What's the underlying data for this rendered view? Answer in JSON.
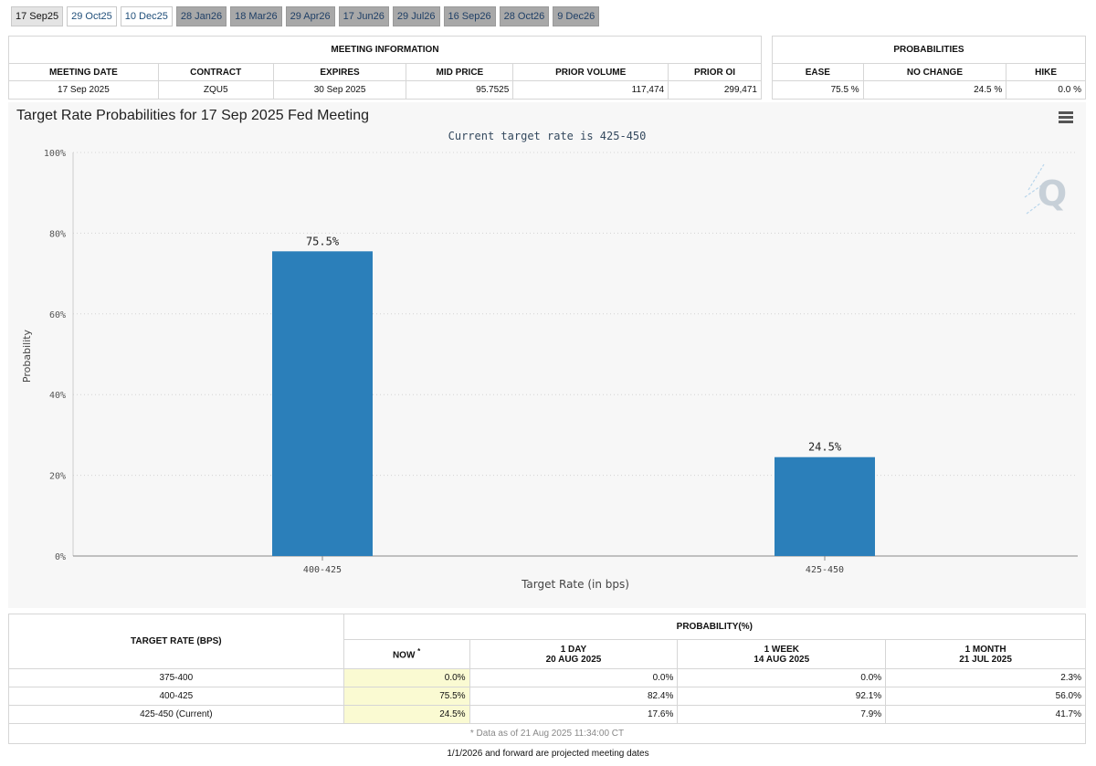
{
  "tabs": [
    {
      "label": "17 Sep25",
      "style": "active"
    },
    {
      "label": "29 Oct25",
      "style": "near"
    },
    {
      "label": "10 Dec25",
      "style": "near"
    },
    {
      "label": "28 Jan26",
      "style": "far"
    },
    {
      "label": "18 Mar26",
      "style": "far"
    },
    {
      "label": "29 Apr26",
      "style": "far"
    },
    {
      "label": "17 Jun26",
      "style": "far"
    },
    {
      "label": "29 Jul26",
      "style": "far"
    },
    {
      "label": "16 Sep26",
      "style": "far"
    },
    {
      "label": "28 Oct26",
      "style": "far"
    },
    {
      "label": "9 Dec26",
      "style": "far"
    }
  ],
  "meeting_info": {
    "title": "MEETING INFORMATION",
    "columns": [
      "MEETING DATE",
      "CONTRACT",
      "EXPIRES",
      "MID PRICE",
      "PRIOR VOLUME",
      "PRIOR OI"
    ],
    "values": [
      "17 Sep 2025",
      "ZQU5",
      "30 Sep 2025",
      "95.7525",
      "117,474",
      "299,471"
    ]
  },
  "probabilities": {
    "title": "PROBABILITIES",
    "columns": [
      "EASE",
      "NO CHANGE",
      "HIKE"
    ],
    "values": [
      "75.5 %",
      "24.5 %",
      "0.0 %"
    ]
  },
  "chart": {
    "title": "Target Rate Probabilities for 17 Sep 2025 Fed Meeting",
    "subtitle": "Current target rate is 425-450",
    "watermark": "Q"
  },
  "chart_data": {
    "type": "bar",
    "title": "Target Rate Probabilities for 17 Sep 2025 Fed Meeting",
    "subtitle": "Current target rate is 425-450",
    "categories": [
      "400-425",
      "425-450"
    ],
    "values": [
      75.5,
      24.5
    ],
    "value_labels": [
      "75.5%",
      "24.5%"
    ],
    "xlabel": "Target Rate (in bps)",
    "ylabel": "Probability",
    "ylim": [
      0,
      100
    ],
    "yticks": [
      0,
      20,
      40,
      60,
      80,
      100
    ],
    "ytick_labels": [
      "0%",
      "20%",
      "40%",
      "60%",
      "80%",
      "100%"
    ],
    "grid": true,
    "bar_color": "#2b7fba"
  },
  "prob_table": {
    "target_header": "TARGET RATE (BPS)",
    "prob_header": "PROBABILITY(%)",
    "now_label": "NOW",
    "now_mark": "*",
    "periods": [
      {
        "label": "1 DAY",
        "date": "20 AUG 2025"
      },
      {
        "label": "1 WEEK",
        "date": "14 AUG 2025"
      },
      {
        "label": "1 MONTH",
        "date": "21 JUL 2025"
      }
    ],
    "rows": [
      {
        "rate": "375-400",
        "now": "0.0%",
        "day": "0.0%",
        "week": "0.0%",
        "month": "2.3%"
      },
      {
        "rate": "400-425",
        "now": "75.5%",
        "day": "82.4%",
        "week": "92.1%",
        "month": "56.0%"
      },
      {
        "rate": "425-450 (Current)",
        "now": "24.5%",
        "day": "17.6%",
        "week": "7.9%",
        "month": "41.7%"
      }
    ],
    "footnote": "* Data as of 21 Aug 2025 11:34:00 CT"
  },
  "projection_note": "1/1/2026 and forward are projected meeting dates"
}
